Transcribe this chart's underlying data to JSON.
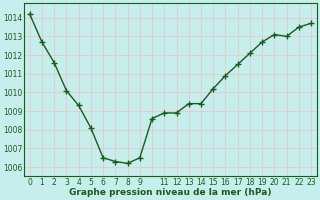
{
  "x": [
    0,
    1,
    2,
    3,
    4,
    5,
    6,
    7,
    8,
    9,
    10,
    11,
    12,
    13,
    14,
    15,
    16,
    17,
    18,
    19,
    20,
    21,
    22,
    23
  ],
  "y": [
    1014.2,
    1012.7,
    1011.6,
    1010.1,
    1009.3,
    1008.1,
    1006.5,
    1006.3,
    1006.2,
    1006.5,
    1008.6,
    1008.9,
    1008.9,
    1009.4,
    1009.4,
    1010.2,
    1010.9,
    1011.5,
    1012.1,
    1012.7,
    1013.1,
    1013.0,
    1013.5,
    1013.7
  ],
  "line_color": "#1a5c1a",
  "marker": "+",
  "marker_size": 4,
  "marker_lw": 1.0,
  "line_width": 1.0,
  "bg_color": "#c5eeed",
  "grid_color": "#e8c8c8",
  "xlabel": "Graphe pression niveau de la mer (hPa)",
  "xlabel_fontsize": 6.5,
  "xlabel_color": "#1a5c1a",
  "ytick_vals": [
    1006,
    1007,
    1008,
    1009,
    1010,
    1011,
    1012,
    1013,
    1014
  ],
  "ytick_labels": [
    "1006",
    "1007",
    "1008",
    "1009",
    "1010",
    "1011",
    "1012",
    "1013",
    "1014"
  ],
  "ylim": [
    1005.5,
    1014.8
  ],
  "xlim": [
    -0.5,
    23.5
  ],
  "xtick_labels": [
    "0",
    "1",
    "2",
    "3",
    "4",
    "5",
    "6",
    "7",
    "8",
    "9",
    "",
    "11",
    "12",
    "13",
    "14",
    "15",
    "16",
    "17",
    "18",
    "19",
    "20",
    "21",
    "22",
    "23"
  ],
  "tick_fontsize": 5.5,
  "tick_color": "#1a5c1a"
}
